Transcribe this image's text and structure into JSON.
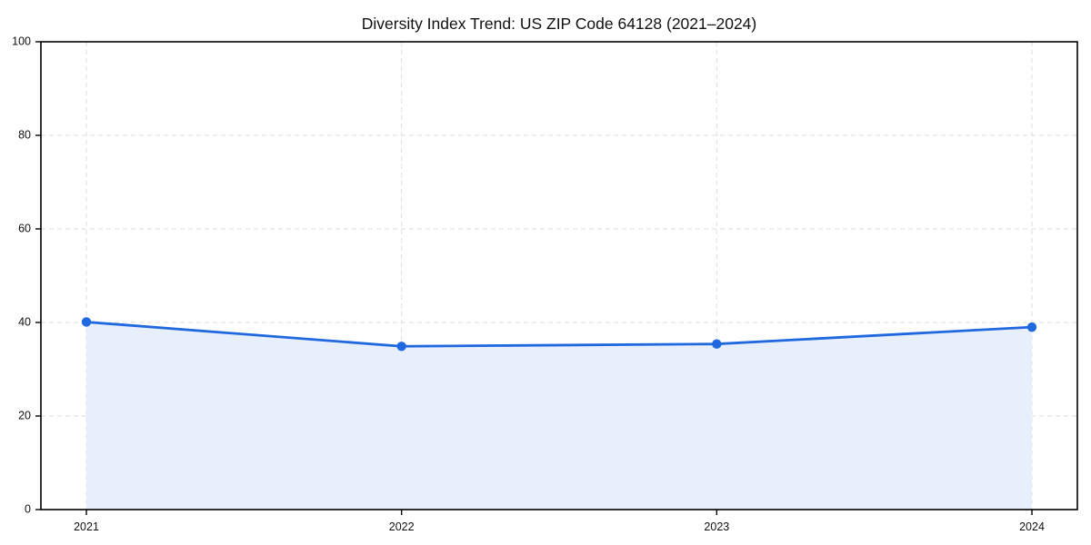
{
  "chart_data": {
    "type": "area",
    "title": "Diversity Index Trend: US ZIP Code 64128 (2021–2024)",
    "categories": [
      "2021",
      "2022",
      "2023",
      "2024"
    ],
    "series": [
      {
        "name": "Diversity Index",
        "values": [
          40.1,
          34.9,
          35.4,
          39.0
        ]
      }
    ],
    "xlabel": "",
    "ylabel": "",
    "ylim": [
      0,
      100
    ],
    "yticks": [
      0,
      20,
      40,
      60,
      80,
      100
    ],
    "grid": true,
    "grid_style": "dashed",
    "legend": "none",
    "line_color": "#2068e0",
    "fill_color": "#e7eefc",
    "grid_color": "#dedede",
    "border_color": "#000000",
    "text_color": "#111111"
  }
}
